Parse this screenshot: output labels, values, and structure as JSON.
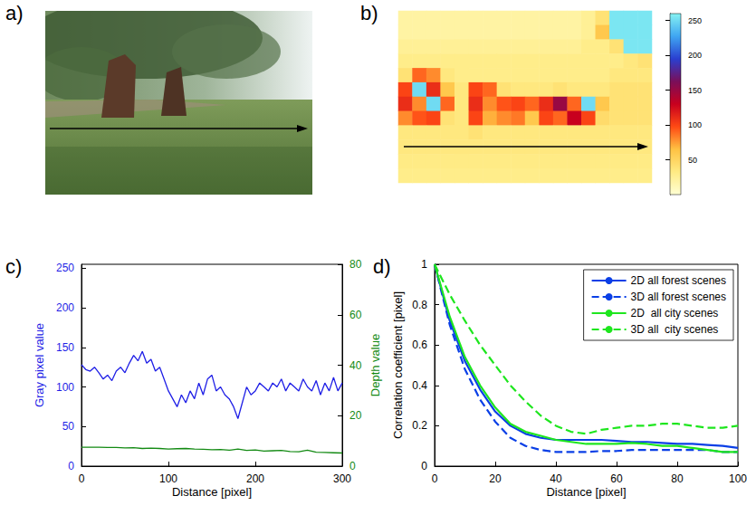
{
  "chart_data": [
    {
      "panel": "a)",
      "type": "image"
    },
    {
      "panel": "b)",
      "type": "heatmap",
      "tick_labels": false,
      "cells": [
        [
          20,
          20,
          20,
          20,
          20,
          20,
          20,
          20,
          20,
          20,
          20,
          20,
          20,
          25,
          40,
          255,
          255,
          255
        ],
        [
          20,
          20,
          20,
          20,
          20,
          20,
          20,
          20,
          20,
          20,
          20,
          20,
          20,
          25,
          60,
          255,
          255,
          255
        ],
        [
          25,
          25,
          25,
          25,
          25,
          25,
          25,
          25,
          25,
          25,
          25,
          25,
          25,
          30,
          30,
          40,
          255,
          255
        ],
        [
          30,
          30,
          30,
          30,
          30,
          30,
          30,
          30,
          30,
          30,
          30,
          30,
          30,
          30,
          30,
          30,
          35,
          40
        ],
        [
          40,
          90,
          80,
          35,
          30,
          30,
          30,
          30,
          30,
          30,
          30,
          30,
          30,
          30,
          30,
          35,
          35,
          35
        ],
        [
          100,
          250,
          110,
          60,
          35,
          100,
          90,
          40,
          35,
          35,
          35,
          40,
          35,
          35,
          35,
          40,
          40,
          40
        ],
        [
          110,
          80,
          250,
          90,
          35,
          110,
          80,
          95,
          100,
          90,
          110,
          150,
          90,
          250,
          60,
          40,
          40,
          40
        ],
        [
          80,
          95,
          100,
          40,
          35,
          100,
          70,
          80,
          85,
          60,
          100,
          90,
          130,
          100,
          45,
          40,
          40,
          40
        ],
        [
          35,
          35,
          35,
          35,
          35,
          40,
          35,
          35,
          35,
          35,
          35,
          35,
          35,
          35,
          35,
          35,
          35,
          35
        ],
        [
          35,
          35,
          35,
          35,
          35,
          35,
          35,
          35,
          35,
          35,
          35,
          35,
          35,
          35,
          35,
          35,
          35,
          35
        ],
        [
          32,
          32,
          32,
          32,
          32,
          32,
          32,
          32,
          32,
          32,
          32,
          32,
          32,
          32,
          32,
          32,
          32,
          32
        ],
        [
          30,
          30,
          30,
          30,
          30,
          30,
          30,
          30,
          30,
          30,
          30,
          30,
          30,
          30,
          30,
          30,
          30,
          30
        ]
      ],
      "colorbar": {
        "range": [
          0,
          260
        ],
        "ticks": [
          50,
          100,
          150,
          200,
          250
        ]
      }
    },
    {
      "panel": "c)",
      "type": "line",
      "x_label": "Distance [pixel]",
      "y_label": "Gray pixel value",
      "y2_label": "Depth value",
      "xlim": [
        0,
        300
      ],
      "xticks": [
        0,
        100,
        200,
        300
      ],
      "ylim": [
        0,
        255
      ],
      "yticks": [
        0,
        50,
        100,
        150,
        200,
        250
      ],
      "y2lim": [
        0,
        80
      ],
      "y2ticks": [
        0,
        20,
        40,
        60,
        80
      ],
      "series": [
        {
          "color": "#1f1fe6",
          "axis": "y",
          "x": [
            0,
            5,
            10,
            15,
            20,
            25,
            30,
            35,
            40,
            45,
            50,
            55,
            60,
            65,
            70,
            75,
            80,
            85,
            90,
            95,
            100,
            105,
            110,
            115,
            120,
            125,
            130,
            135,
            140,
            145,
            150,
            155,
            160,
            165,
            170,
            175,
            180,
            185,
            190,
            195,
            200,
            205,
            210,
            215,
            220,
            225,
            230,
            235,
            240,
            245,
            250,
            255,
            260,
            265,
            270,
            275,
            280,
            285,
            290,
            295,
            300
          ],
          "values": [
            128,
            122,
            120,
            125,
            118,
            110,
            115,
            108,
            120,
            125,
            118,
            130,
            140,
            133,
            145,
            130,
            135,
            120,
            125,
            110,
            95,
            85,
            75,
            90,
            80,
            95,
            85,
            105,
            90,
            110,
            115,
            95,
            100,
            90,
            85,
            75,
            60,
            80,
            100,
            90,
            95,
            105,
            100,
            95,
            105,
            100,
            110,
            95,
            105,
            100,
            95,
            110,
            100,
            95,
            108,
            90,
            105,
            95,
            112,
            95,
            105
          ]
        },
        {
          "color": "#138a13",
          "axis": "y2",
          "x": [
            0,
            10,
            20,
            30,
            40,
            50,
            60,
            70,
            80,
            90,
            100,
            110,
            120,
            130,
            140,
            150,
            160,
            170,
            180,
            190,
            200,
            210,
            220,
            230,
            240,
            250,
            260,
            270,
            280,
            290,
            300
          ],
          "values": [
            7.5,
            7.5,
            7.5,
            7.4,
            7.4,
            7.2,
            7.3,
            7.0,
            7.1,
            7.0,
            6.8,
            6.9,
            7.0,
            6.8,
            6.7,
            6.5,
            6.6,
            6.3,
            6.8,
            6.2,
            6.4,
            6.0,
            6.1,
            6.2,
            5.8,
            5.7,
            6.3,
            5.5,
            5.4,
            5.3,
            5.2
          ]
        }
      ]
    },
    {
      "panel": "d)",
      "type": "line",
      "x_label": "Distance [pixel]",
      "y_label": "Correlation coefficient [pixel]",
      "xlim": [
        0,
        100
      ],
      "xticks": [
        0,
        20,
        40,
        60,
        80,
        100
      ],
      "ylim": [
        0,
        1
      ],
      "yticks": [
        0,
        0.2,
        0.4,
        0.6,
        0.8,
        1
      ],
      "legend": "upper right",
      "x": [
        0,
        5,
        10,
        15,
        20,
        25,
        30,
        35,
        40,
        45,
        50,
        55,
        60,
        65,
        70,
        75,
        80,
        85,
        90,
        95,
        100
      ],
      "series": [
        {
          "name": "2D all forest scenes",
          "color": "#0a3fe6",
          "line_style": "solid",
          "values": [
            1,
            0.72,
            0.52,
            0.38,
            0.27,
            0.2,
            0.16,
            0.14,
            0.13,
            0.13,
            0.13,
            0.13,
            0.125,
            0.12,
            0.12,
            0.115,
            0.11,
            0.11,
            0.105,
            0.1,
            0.09
          ]
        },
        {
          "name": "3D all forest scenes",
          "color": "#0a3fe6",
          "line_style": "dashed",
          "values": [
            1,
            0.7,
            0.48,
            0.33,
            0.22,
            0.14,
            0.1,
            0.08,
            0.07,
            0.07,
            0.07,
            0.075,
            0.075,
            0.08,
            0.08,
            0.08,
            0.08,
            0.08,
            0.08,
            0.07,
            0.07
          ]
        },
        {
          "name": "2D  all city scenes",
          "color": "#1ee61e",
          "line_style": "solid",
          "values": [
            1,
            0.74,
            0.54,
            0.4,
            0.29,
            0.21,
            0.17,
            0.15,
            0.13,
            0.12,
            0.11,
            0.11,
            0.11,
            0.115,
            0.11,
            0.1,
            0.1,
            0.09,
            0.08,
            0.07,
            0.07
          ]
        },
        {
          "name": "3D all  city scenes",
          "color": "#1ee61e",
          "line_style": "dashed",
          "values": [
            1,
            0.85,
            0.72,
            0.6,
            0.5,
            0.4,
            0.32,
            0.25,
            0.2,
            0.17,
            0.16,
            0.18,
            0.19,
            0.2,
            0.2,
            0.21,
            0.21,
            0.2,
            0.19,
            0.19,
            0.2
          ]
        }
      ]
    }
  ]
}
